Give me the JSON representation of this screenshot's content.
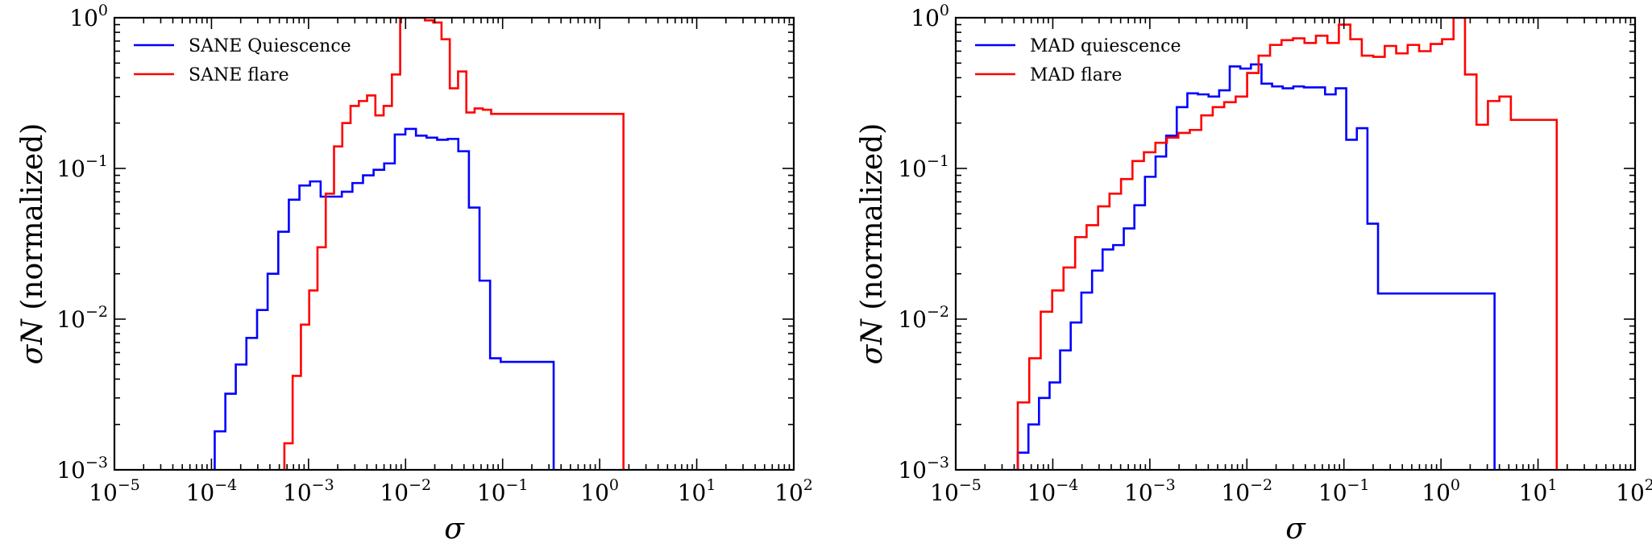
{
  "chart_data": [
    {
      "type": "step",
      "xscale": "log",
      "yscale": "log",
      "xlim": [
        1e-05,
        100
      ],
      "ylim": [
        0.001,
        1
      ],
      "xlabel": "σ",
      "ylabel_var": "σN",
      "ylabel_rest": " (normalized)",
      "x_ticks": [
        {
          "base": "10",
          "exp": "−5",
          "value": 1e-05
        },
        {
          "base": "10",
          "exp": "−4",
          "value": 0.0001
        },
        {
          "base": "10",
          "exp": "−3",
          "value": 0.001
        },
        {
          "base": "10",
          "exp": "−2",
          "value": 0.01
        },
        {
          "base": "10",
          "exp": "−1",
          "value": 0.1
        },
        {
          "base": "10",
          "exp": "0",
          "value": 1
        },
        {
          "base": "10",
          "exp": "1",
          "value": 10
        },
        {
          "base": "10",
          "exp": "2",
          "value": 100
        }
      ],
      "y_ticks": [
        {
          "base": "10",
          "exp": "−3",
          "value": 0.001
        },
        {
          "base": "10",
          "exp": "−2",
          "value": 0.01
        },
        {
          "base": "10",
          "exp": "−1",
          "value": 0.1
        },
        {
          "base": "10",
          "exp": "0",
          "value": 1
        }
      ],
      "legend_position": "top-left",
      "series": [
        {
          "name": "SANE Quiescence",
          "color": "#0000ff",
          "x_edges": [
            0.000108,
            0.000139,
            0.000178,
            0.000229,
            0.000295,
            0.000379,
            0.000488,
            0.000627,
            0.000806,
            0.001037,
            0.001333,
            0.001714,
            0.002203,
            0.002833,
            0.003642,
            0.004683,
            0.006021,
            0.007741,
            0.009952,
            0.012795,
            0.016451,
            0.021151,
            0.027193,
            0.034962,
            0.04495,
            0.057792,
            0.074302,
            0.095529,
            0.12282,
            0.157907,
            0.203018,
            0.261016,
            0.335584
          ],
          "values": [
            0.0018,
            0.0032,
            0.005,
            0.0075,
            0.0115,
            0.02,
            0.038,
            0.062,
            0.077,
            0.082,
            0.065,
            0.065,
            0.07,
            0.08,
            0.09,
            0.098,
            0.108,
            0.168,
            0.183,
            0.165,
            0.16,
            0.155,
            0.157,
            0.13,
            0.055,
            0.018,
            0.0055,
            0.0052,
            0.0052,
            0.0052,
            0.0052,
            0.0052
          ]
        },
        {
          "name": "SANE flare",
          "color": "#ff0000",
          "x_edges": [
            0.000564,
            0.000686,
            0.000835,
            0.001016,
            0.001237,
            0.001505,
            0.001831,
            0.002228,
            0.002711,
            0.003299,
            0.004014,
            0.004884,
            0.005943,
            0.007231,
            0.008799,
            0.010706,
            0.013027,
            0.015851,
            0.019287,
            0.023468,
            0.028556,
            0.034746,
            0.042278,
            0.051443,
            0.062595,
            0.076164,
            0.092675,
            0.112764,
            0.137209,
            0.166953,
            0.203145,
            0.247182,
            0.300766,
            0.365965,
            0.445299,
            0.54183,
            0.659286,
            0.802204,
            0.976103,
            1.1877,
            1.445165,
            1.758443
          ],
          "values": [
            0.0015,
            0.0042,
            0.0092,
            0.0155,
            0.03,
            0.068,
            0.14,
            0.2,
            0.26,
            0.28,
            0.305,
            0.225,
            0.26,
            0.42,
            1.0,
            1.0,
            1.0,
            0.96,
            0.93,
            0.72,
            0.34,
            0.44,
            0.235,
            0.25,
            0.245,
            0.23,
            0.23,
            0.23,
            0.23,
            0.23,
            0.23,
            0.23,
            0.23,
            0.23,
            0.23,
            0.23,
            0.23,
            0.23,
            0.23,
            0.23,
            0.23
          ]
        }
      ]
    },
    {
      "type": "step",
      "xscale": "log",
      "yscale": "log",
      "xlim": [
        1e-05,
        100
      ],
      "ylim": [
        0.001,
        1
      ],
      "xlabel": "σ",
      "ylabel_var": "σN",
      "ylabel_rest": " (normalized)",
      "x_ticks": [
        {
          "base": "10",
          "exp": "−5",
          "value": 1e-05
        },
        {
          "base": "10",
          "exp": "−4",
          "value": 0.0001
        },
        {
          "base": "10",
          "exp": "−3",
          "value": 0.001
        },
        {
          "base": "10",
          "exp": "−2",
          "value": 0.01
        },
        {
          "base": "10",
          "exp": "−1",
          "value": 0.1
        },
        {
          "base": "10",
          "exp": "0",
          "value": 1
        },
        {
          "base": "10",
          "exp": "1",
          "value": 10
        },
        {
          "base": "10",
          "exp": "2",
          "value": 100
        }
      ],
      "y_ticks": [
        {
          "base": "10",
          "exp": "−3",
          "value": 0.001
        },
        {
          "base": "10",
          "exp": "−2",
          "value": 0.01
        },
        {
          "base": "10",
          "exp": "−1",
          "value": 0.1
        },
        {
          "base": "10",
          "exp": "0",
          "value": 1
        }
      ],
      "legend_position": "top-left",
      "series": [
        {
          "name": "MAD quiescence",
          "color": "#0000ff",
          "x_edges": [
            4.36e-05,
            5.61e-05,
            7.21e-05,
            9.27e-05,
            0.000119,
            0.000153,
            0.000197,
            0.000254,
            0.000326,
            0.000419,
            0.000539,
            0.000693,
            0.000891,
            0.001146,
            0.001473,
            0.001894,
            0.002436,
            0.003131,
            0.004026,
            0.005177,
            0.006656,
            0.008558,
            0.011004,
            0.014148,
            0.01819,
            0.023388,
            0.030071,
            0.038663,
            0.04971,
            0.063914,
            0.082176,
            0.105656,
            0.135845,
            0.17466,
            0.224566,
            0.288732,
            0.371234,
            0.477308,
            0.61369,
            0.789042,
            1.0145,
            1.304377,
            1.677081,
            2.156276,
            2.772395,
            3.564559
          ],
          "values": [
            0.0013,
            0.002,
            0.003,
            0.0038,
            0.0062,
            0.0095,
            0.015,
            0.021,
            0.029,
            0.031,
            0.04,
            0.057,
            0.088,
            0.12,
            0.165,
            0.255,
            0.315,
            0.31,
            0.3,
            0.33,
            0.475,
            0.46,
            0.49,
            0.365,
            0.35,
            0.34,
            0.35,
            0.345,
            0.345,
            0.31,
            0.34,
            0.155,
            0.185,
            0.043,
            0.0148,
            0.0148,
            0.0148,
            0.0148,
            0.0148,
            0.0148,
            0.0148,
            0.0148,
            0.0148,
            0.0148,
            0.0148
          ]
        },
        {
          "name": "MAD flare",
          "color": "#ff0000",
          "x_edges": [
            4.36e-05,
            5.72e-05,
            7.51e-05,
            9.86e-05,
            0.000129,
            0.00017,
            0.000223,
            0.000293,
            0.000384,
            0.000505,
            0.000662,
            0.000869,
            0.001141,
            0.001498,
            0.001966,
            0.002581,
            0.003388,
            0.004447,
            0.005838,
            0.007663,
            0.010059,
            0.013204,
            0.017333,
            0.022752,
            0.029866,
            0.039204,
            0.051462,
            0.067553,
            0.088675,
            0.116401,
            0.152796,
            0.200571,
            0.263284,
            0.345605,
            0.453665,
            0.595511,
            0.781708,
            1.026125,
            1.346964,
            1.76812,
            2.320962,
            3.046661,
            3.999264,
            5.249718,
            6.891153,
            9.045818,
            11.874188,
            15.586886
          ],
          "values": [
            0.0028,
            0.0055,
            0.0112,
            0.0155,
            0.022,
            0.035,
            0.042,
            0.056,
            0.068,
            0.085,
            0.112,
            0.128,
            0.148,
            0.16,
            0.172,
            0.18,
            0.225,
            0.255,
            0.275,
            0.3,
            0.43,
            0.56,
            0.66,
            0.71,
            0.73,
            0.68,
            0.76,
            0.68,
            0.9,
            0.72,
            0.56,
            0.55,
            0.65,
            0.58,
            0.66,
            0.6,
            0.67,
            0.72,
            1.0,
            0.42,
            0.195,
            0.28,
            0.3,
            0.21,
            0.21,
            0.21,
            0.21
          ]
        }
      ]
    }
  ]
}
